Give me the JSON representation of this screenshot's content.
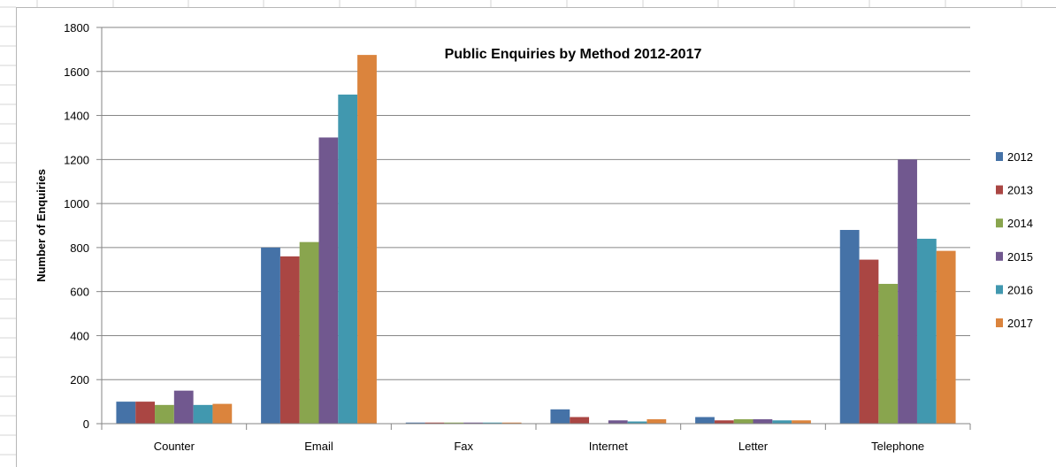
{
  "chart_data": {
    "type": "bar",
    "title": "Public Enquiries by Method 2012-2017",
    "xlabel": "",
    "ylabel": "Number of Enquiries",
    "ylim": [
      0,
      1800
    ],
    "yticks": [
      0,
      200,
      400,
      600,
      800,
      1000,
      1200,
      1400,
      1600,
      1800
    ],
    "grid": true,
    "legend_position": "right",
    "categories": [
      "Counter",
      "Email",
      "Fax",
      "Internet",
      "Letter",
      "Telephone"
    ],
    "series": [
      {
        "name": "2012",
        "color": "#4572a7",
        "values": [
          100,
          800,
          5,
          65,
          30,
          880
        ]
      },
      {
        "name": "2013",
        "color": "#aa4643",
        "values": [
          100,
          760,
          5,
          30,
          15,
          745
        ]
      },
      {
        "name": "2014",
        "color": "#89a54e",
        "values": [
          85,
          825,
          5,
          0,
          20,
          635
        ]
      },
      {
        "name": "2015",
        "color": "#71588f",
        "values": [
          150,
          1300,
          5,
          15,
          20,
          1200
        ]
      },
      {
        "name": "2016",
        "color": "#4198af",
        "values": [
          85,
          1495,
          5,
          10,
          15,
          840
        ]
      },
      {
        "name": "2017",
        "color": "#db843d",
        "values": [
          90,
          1675,
          5,
          20,
          15,
          785
        ]
      }
    ]
  }
}
